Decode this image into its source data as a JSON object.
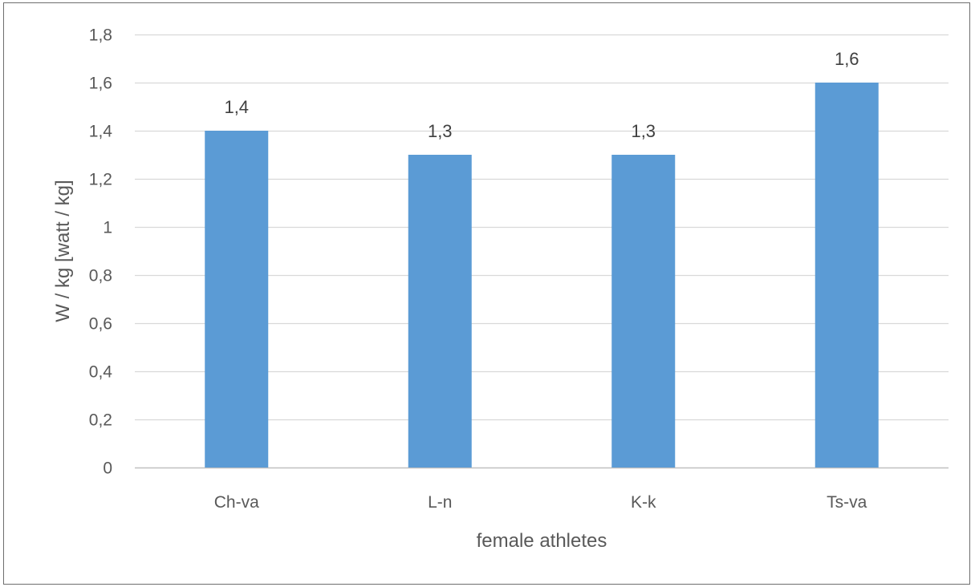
{
  "chart_data": {
    "type": "bar",
    "categories": [
      "Ch-va",
      "L-n",
      "K-k",
      "Ts-va"
    ],
    "values": [
      1.4,
      1.3,
      1.3,
      1.6
    ],
    "data_labels": [
      "1,4",
      "1,3",
      "1,3",
      "1,6"
    ],
    "title": "",
    "xlabel": "female athletes",
    "ylabel": "W / kg  [watt / kg]",
    "ylim": [
      0,
      1.8
    ],
    "yticks": [
      0,
      0.2,
      0.4,
      0.6,
      0.8,
      1,
      1.2,
      1.4,
      1.6,
      1.8
    ],
    "ytick_labels": [
      "0",
      "0,2",
      "0,4",
      "0,6",
      "0,8",
      "1",
      "1,2",
      "1,4",
      "1,6",
      "1,8"
    ],
    "grid": true,
    "legend": "none",
    "bar_color": "#5b9bd5",
    "grid_color": "#d9d9d9"
  }
}
